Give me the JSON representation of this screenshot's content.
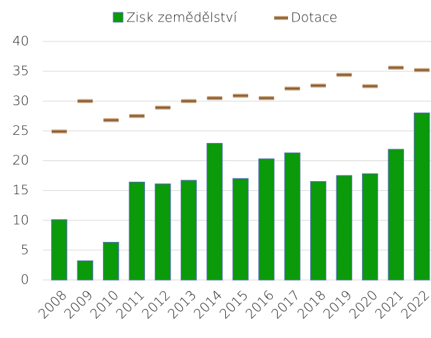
{
  "chart_data": {
    "type": "bar",
    "categories": [
      "2008",
      "2009",
      "2010",
      "2011",
      "2012",
      "2013",
      "2014",
      "2015",
      "2016",
      "2017",
      "2018",
      "2019",
      "2020",
      "2021",
      "2022"
    ],
    "series": [
      {
        "name": "Zisk zemědělství",
        "type": "bar",
        "color": "#0a9a0a",
        "values": [
          10.1,
          3.2,
          6.3,
          16.4,
          16.1,
          16.7,
          22.9,
          17.0,
          20.3,
          21.3,
          16.5,
          17.5,
          17.8,
          21.9,
          28.0
        ]
      },
      {
        "name": "Dotace",
        "type": "marker",
        "color": "#8b5a2b",
        "values": [
          24.9,
          30.0,
          26.8,
          27.5,
          28.9,
          30.0,
          30.5,
          30.9,
          30.5,
          32.1,
          32.6,
          34.4,
          32.5,
          35.6,
          35.2
        ]
      }
    ],
    "ylim": [
      0,
      40
    ],
    "yticks": [
      0,
      5,
      10,
      15,
      20,
      25,
      30,
      35,
      40
    ],
    "grid": true,
    "legend": "top"
  }
}
